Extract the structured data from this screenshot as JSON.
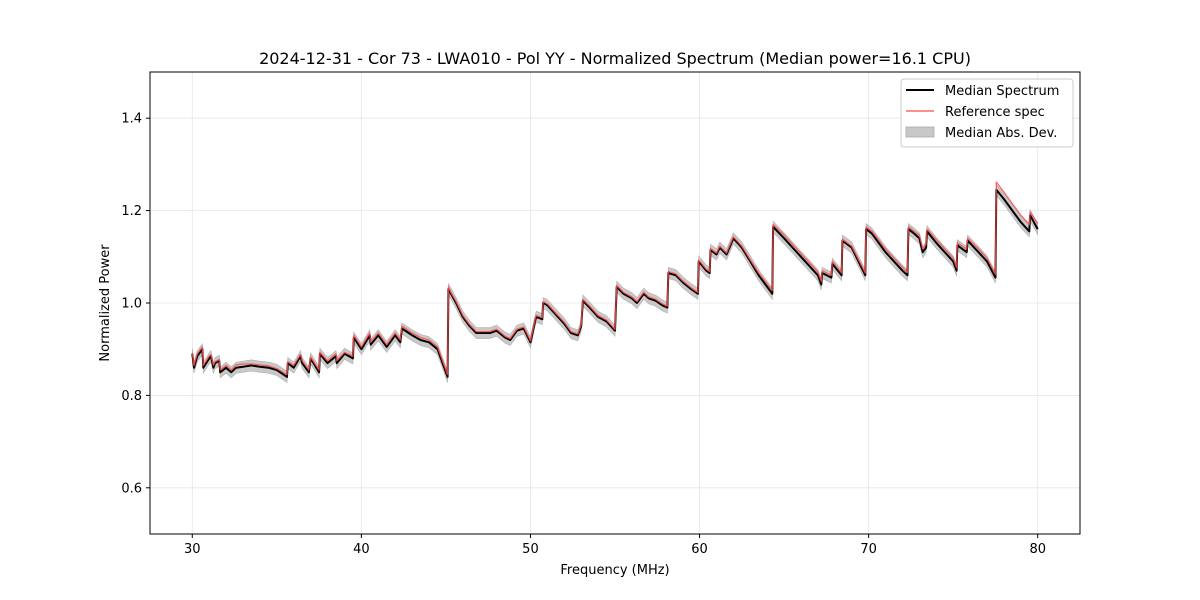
{
  "chart_data": {
    "type": "line",
    "title": "2024-12-31 - Cor 73 - LWA010 - Pol YY - Normalized Spectrum (Median power=16.1 CPU)",
    "xlabel": "Frequency (MHz)",
    "ylabel": "Normalized Power",
    "xlim": [
      27.5,
      82.5
    ],
    "ylim": [
      0.5,
      1.5
    ],
    "x_ticks": [
      30,
      40,
      50,
      60,
      70,
      80
    ],
    "y_ticks": [
      0.6,
      0.8,
      1.0,
      1.2,
      1.4
    ],
    "x_tick_labels": [
      "30",
      "40",
      "50",
      "60",
      "70",
      "80"
    ],
    "y_tick_labels": [
      "0.6",
      "0.8",
      "1.0",
      "1.2",
      "1.4"
    ],
    "grid": true,
    "legend": {
      "position": "top-right",
      "entries": [
        {
          "label": "Median Spectrum",
          "color": "#000000",
          "kind": "line"
        },
        {
          "label": "Reference spec",
          "color": "#ff4b4b",
          "kind": "line"
        },
        {
          "label": "Median Abs. Dev.",
          "color": "#c8c8c8",
          "kind": "band"
        }
      ]
    },
    "band_halfwidth": 0.012,
    "series": [
      {
        "name": "Median Spectrum",
        "color": "#000000",
        "x": [
          30.0,
          30.1,
          30.3,
          30.6,
          30.65,
          31.0,
          31.1,
          31.25,
          31.35,
          31.6,
          31.65,
          32.0,
          32.3,
          32.6,
          33.0,
          33.5,
          34.0,
          34.5,
          35.0,
          35.6,
          35.65,
          36.0,
          36.4,
          36.5,
          36.9,
          37.0,
          37.5,
          37.55,
          38.0,
          38.5,
          38.55,
          39.0,
          39.5,
          39.55,
          40.0,
          40.5,
          40.55,
          41.0,
          41.5,
          42.0,
          42.3,
          42.4,
          42.8,
          43.0,
          43.5,
          44.0,
          44.5,
          45.1,
          45.15,
          45.3,
          45.6,
          46.0,
          46.4,
          46.8,
          47.2,
          47.6,
          48.0,
          48.5,
          48.8,
          49.2,
          49.6,
          50.0,
          50.3,
          50.35,
          50.7,
          50.75,
          51.0,
          51.5,
          52.0,
          52.4,
          52.8,
          53.0,
          53.1,
          53.5,
          54.0,
          54.5,
          55.0,
          55.1,
          55.5,
          56.0,
          56.3,
          56.7,
          57.0,
          57.4,
          57.8,
          58.1,
          58.15,
          58.6,
          59.0,
          59.5,
          59.9,
          59.95,
          60.4,
          60.6,
          60.65,
          61.0,
          61.2,
          61.6,
          62.0,
          62.5,
          63.0,
          63.5,
          64.3,
          64.35,
          65.0,
          66.0,
          67.0,
          67.2,
          67.25,
          67.8,
          67.85,
          68.4,
          68.45,
          69.0,
          69.8,
          69.85,
          70.2,
          71.0,
          71.5,
          72.0,
          72.3,
          72.35,
          72.7,
          73.0,
          73.2,
          73.4,
          73.45,
          74.0,
          75.0,
          75.2,
          75.25,
          75.8,
          75.85,
          76.5,
          77.0,
          77.5,
          77.55,
          78.0,
          78.5,
          79.0,
          79.5,
          79.55,
          80.0
        ],
        "values": [
          0.89,
          0.86,
          0.885,
          0.9,
          0.86,
          0.88,
          0.885,
          0.86,
          0.87,
          0.875,
          0.85,
          0.86,
          0.85,
          0.86,
          0.862,
          0.865,
          0.862,
          0.86,
          0.855,
          0.84,
          0.87,
          0.86,
          0.885,
          0.87,
          0.85,
          0.88,
          0.85,
          0.89,
          0.87,
          0.885,
          0.87,
          0.89,
          0.88,
          0.925,
          0.9,
          0.93,
          0.91,
          0.93,
          0.905,
          0.93,
          0.915,
          0.945,
          0.935,
          0.93,
          0.92,
          0.915,
          0.9,
          0.84,
          1.03,
          1.02,
          1.0,
          0.97,
          0.95,
          0.935,
          0.935,
          0.935,
          0.94,
          0.925,
          0.92,
          0.94,
          0.945,
          0.915,
          0.965,
          0.97,
          0.965,
          1.0,
          0.995,
          0.975,
          0.955,
          0.935,
          0.93,
          0.95,
          1.005,
          0.99,
          0.97,
          0.96,
          0.94,
          1.035,
          1.02,
          1.01,
          1.0,
          1.02,
          1.01,
          1.005,
          0.995,
          0.99,
          1.065,
          1.06,
          1.045,
          1.03,
          1.02,
          1.09,
          1.07,
          1.065,
          1.115,
          1.105,
          1.12,
          1.105,
          1.14,
          1.12,
          1.09,
          1.06,
          1.02,
          1.165,
          1.14,
          1.1,
          1.06,
          1.04,
          1.065,
          1.055,
          1.085,
          1.06,
          1.135,
          1.12,
          1.06,
          1.16,
          1.15,
          1.11,
          1.09,
          1.07,
          1.06,
          1.16,
          1.15,
          1.14,
          1.11,
          1.12,
          1.155,
          1.13,
          1.09,
          1.07,
          1.125,
          1.11,
          1.135,
          1.11,
          1.09,
          1.055,
          1.245,
          1.225,
          1.2,
          1.175,
          1.155,
          1.19,
          1.16
        ]
      },
      {
        "name": "Reference spec",
        "color": "#ff4b4b",
        "x": [
          30.0,
          30.1,
          30.3,
          30.6,
          30.65,
          31.0,
          31.1,
          31.25,
          31.35,
          31.6,
          31.65,
          32.0,
          32.3,
          32.6,
          33.0,
          33.5,
          34.0,
          34.5,
          35.0,
          35.6,
          35.65,
          36.0,
          36.4,
          36.5,
          36.9,
          37.0,
          37.5,
          37.55,
          38.0,
          38.5,
          38.55,
          39.0,
          39.5,
          39.55,
          40.0,
          40.5,
          40.55,
          41.0,
          41.5,
          42.0,
          42.3,
          42.4,
          42.8,
          43.0,
          43.5,
          44.0,
          44.5,
          45.1,
          45.15,
          45.3,
          45.6,
          46.0,
          46.4,
          46.8,
          47.2,
          47.6,
          48.0,
          48.5,
          48.8,
          49.2,
          49.6,
          50.0,
          50.3,
          50.35,
          50.7,
          50.75,
          51.0,
          51.5,
          52.0,
          52.4,
          52.8,
          53.0,
          53.1,
          53.5,
          54.0,
          54.5,
          55.0,
          55.1,
          55.5,
          56.0,
          56.3,
          56.7,
          57.0,
          57.4,
          57.8,
          58.1,
          58.15,
          58.6,
          59.0,
          59.5,
          59.9,
          59.95,
          60.4,
          60.6,
          60.65,
          61.0,
          61.2,
          61.6,
          62.0,
          62.5,
          63.0,
          63.5,
          64.3,
          64.35,
          65.0,
          66.0,
          67.0,
          67.2,
          67.25,
          67.8,
          67.85,
          68.4,
          68.45,
          69.0,
          69.8,
          69.85,
          70.2,
          71.0,
          71.5,
          72.0,
          72.3,
          72.35,
          72.7,
          73.0,
          73.2,
          73.4,
          73.45,
          74.0,
          75.0,
          75.2,
          75.25,
          75.8,
          75.85,
          76.5,
          77.0,
          77.5,
          77.55,
          78.0,
          78.5,
          79.0,
          79.5,
          79.55,
          80.0
        ],
        "values": [
          0.892,
          0.865,
          0.89,
          0.905,
          0.865,
          0.885,
          0.888,
          0.865,
          0.873,
          0.878,
          0.855,
          0.865,
          0.855,
          0.866,
          0.868,
          0.868,
          0.866,
          0.864,
          0.858,
          0.845,
          0.873,
          0.865,
          0.888,
          0.875,
          0.855,
          0.883,
          0.855,
          0.893,
          0.875,
          0.89,
          0.875,
          0.893,
          0.885,
          0.93,
          0.905,
          0.935,
          0.915,
          0.935,
          0.91,
          0.935,
          0.92,
          0.95,
          0.94,
          0.935,
          0.925,
          0.92,
          0.905,
          0.845,
          1.035,
          1.022,
          1.003,
          0.973,
          0.953,
          0.938,
          0.938,
          0.938,
          0.943,
          0.928,
          0.923,
          0.943,
          0.948,
          0.918,
          0.968,
          0.973,
          0.968,
          1.003,
          0.998,
          0.978,
          0.958,
          0.938,
          0.933,
          0.953,
          1.008,
          0.993,
          0.973,
          0.963,
          0.943,
          1.038,
          1.023,
          1.013,
          1.003,
          1.023,
          1.013,
          1.008,
          0.998,
          0.993,
          1.068,
          1.063,
          1.048,
          1.033,
          1.023,
          1.093,
          1.073,
          1.068,
          1.118,
          1.108,
          1.123,
          1.108,
          1.143,
          1.123,
          1.093,
          1.065,
          1.027,
          1.17,
          1.147,
          1.107,
          1.067,
          1.047,
          1.07,
          1.06,
          1.09,
          1.065,
          1.138,
          1.123,
          1.065,
          1.165,
          1.155,
          1.117,
          1.097,
          1.077,
          1.066,
          1.165,
          1.155,
          1.147,
          1.117,
          1.127,
          1.16,
          1.137,
          1.097,
          1.077,
          1.13,
          1.117,
          1.14,
          1.117,
          1.097,
          1.062,
          1.262,
          1.24,
          1.215,
          1.19,
          1.17,
          1.197,
          1.172
        ]
      }
    ]
  }
}
